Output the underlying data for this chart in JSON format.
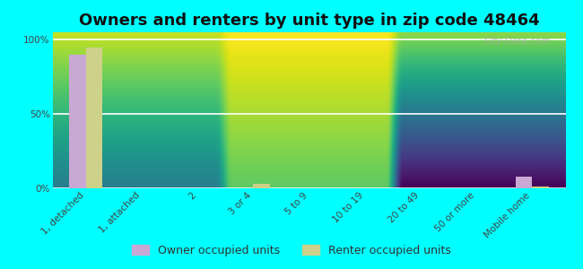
{
  "title": "Owners and renters by unit type in zip code 48464",
  "categories": [
    "1, detached",
    "1, attached",
    "2",
    "3 or 4",
    "5 to 9",
    "10 to 19",
    "20 to 49",
    "50 or more",
    "Mobile home"
  ],
  "owner_values": [
    90,
    0,
    0,
    0,
    0,
    0,
    0,
    0,
    8
  ],
  "renter_values": [
    95,
    0,
    0,
    3,
    0,
    0,
    0,
    0,
    1
  ],
  "owner_color": "#c9a8d4",
  "renter_color": "#cdd eighteen",
  "background_color": "#00ffff",
  "ylabel_ticks": [
    "0%",
    "50%",
    "100%"
  ],
  "ytick_vals": [
    0,
    50,
    100
  ],
  "ylim": [
    0,
    105
  ],
  "bar_width": 0.3,
  "watermark": "City-Data.com",
  "legend_owner": "Owner occupied units",
  "legend_renter": "Renter occupied units",
  "title_fontsize": 13,
  "tick_fontsize": 7.5,
  "legend_fontsize": 9,
  "owner_color_hex": "#c9a8d4",
  "renter_color_hex": "#cdd18a"
}
